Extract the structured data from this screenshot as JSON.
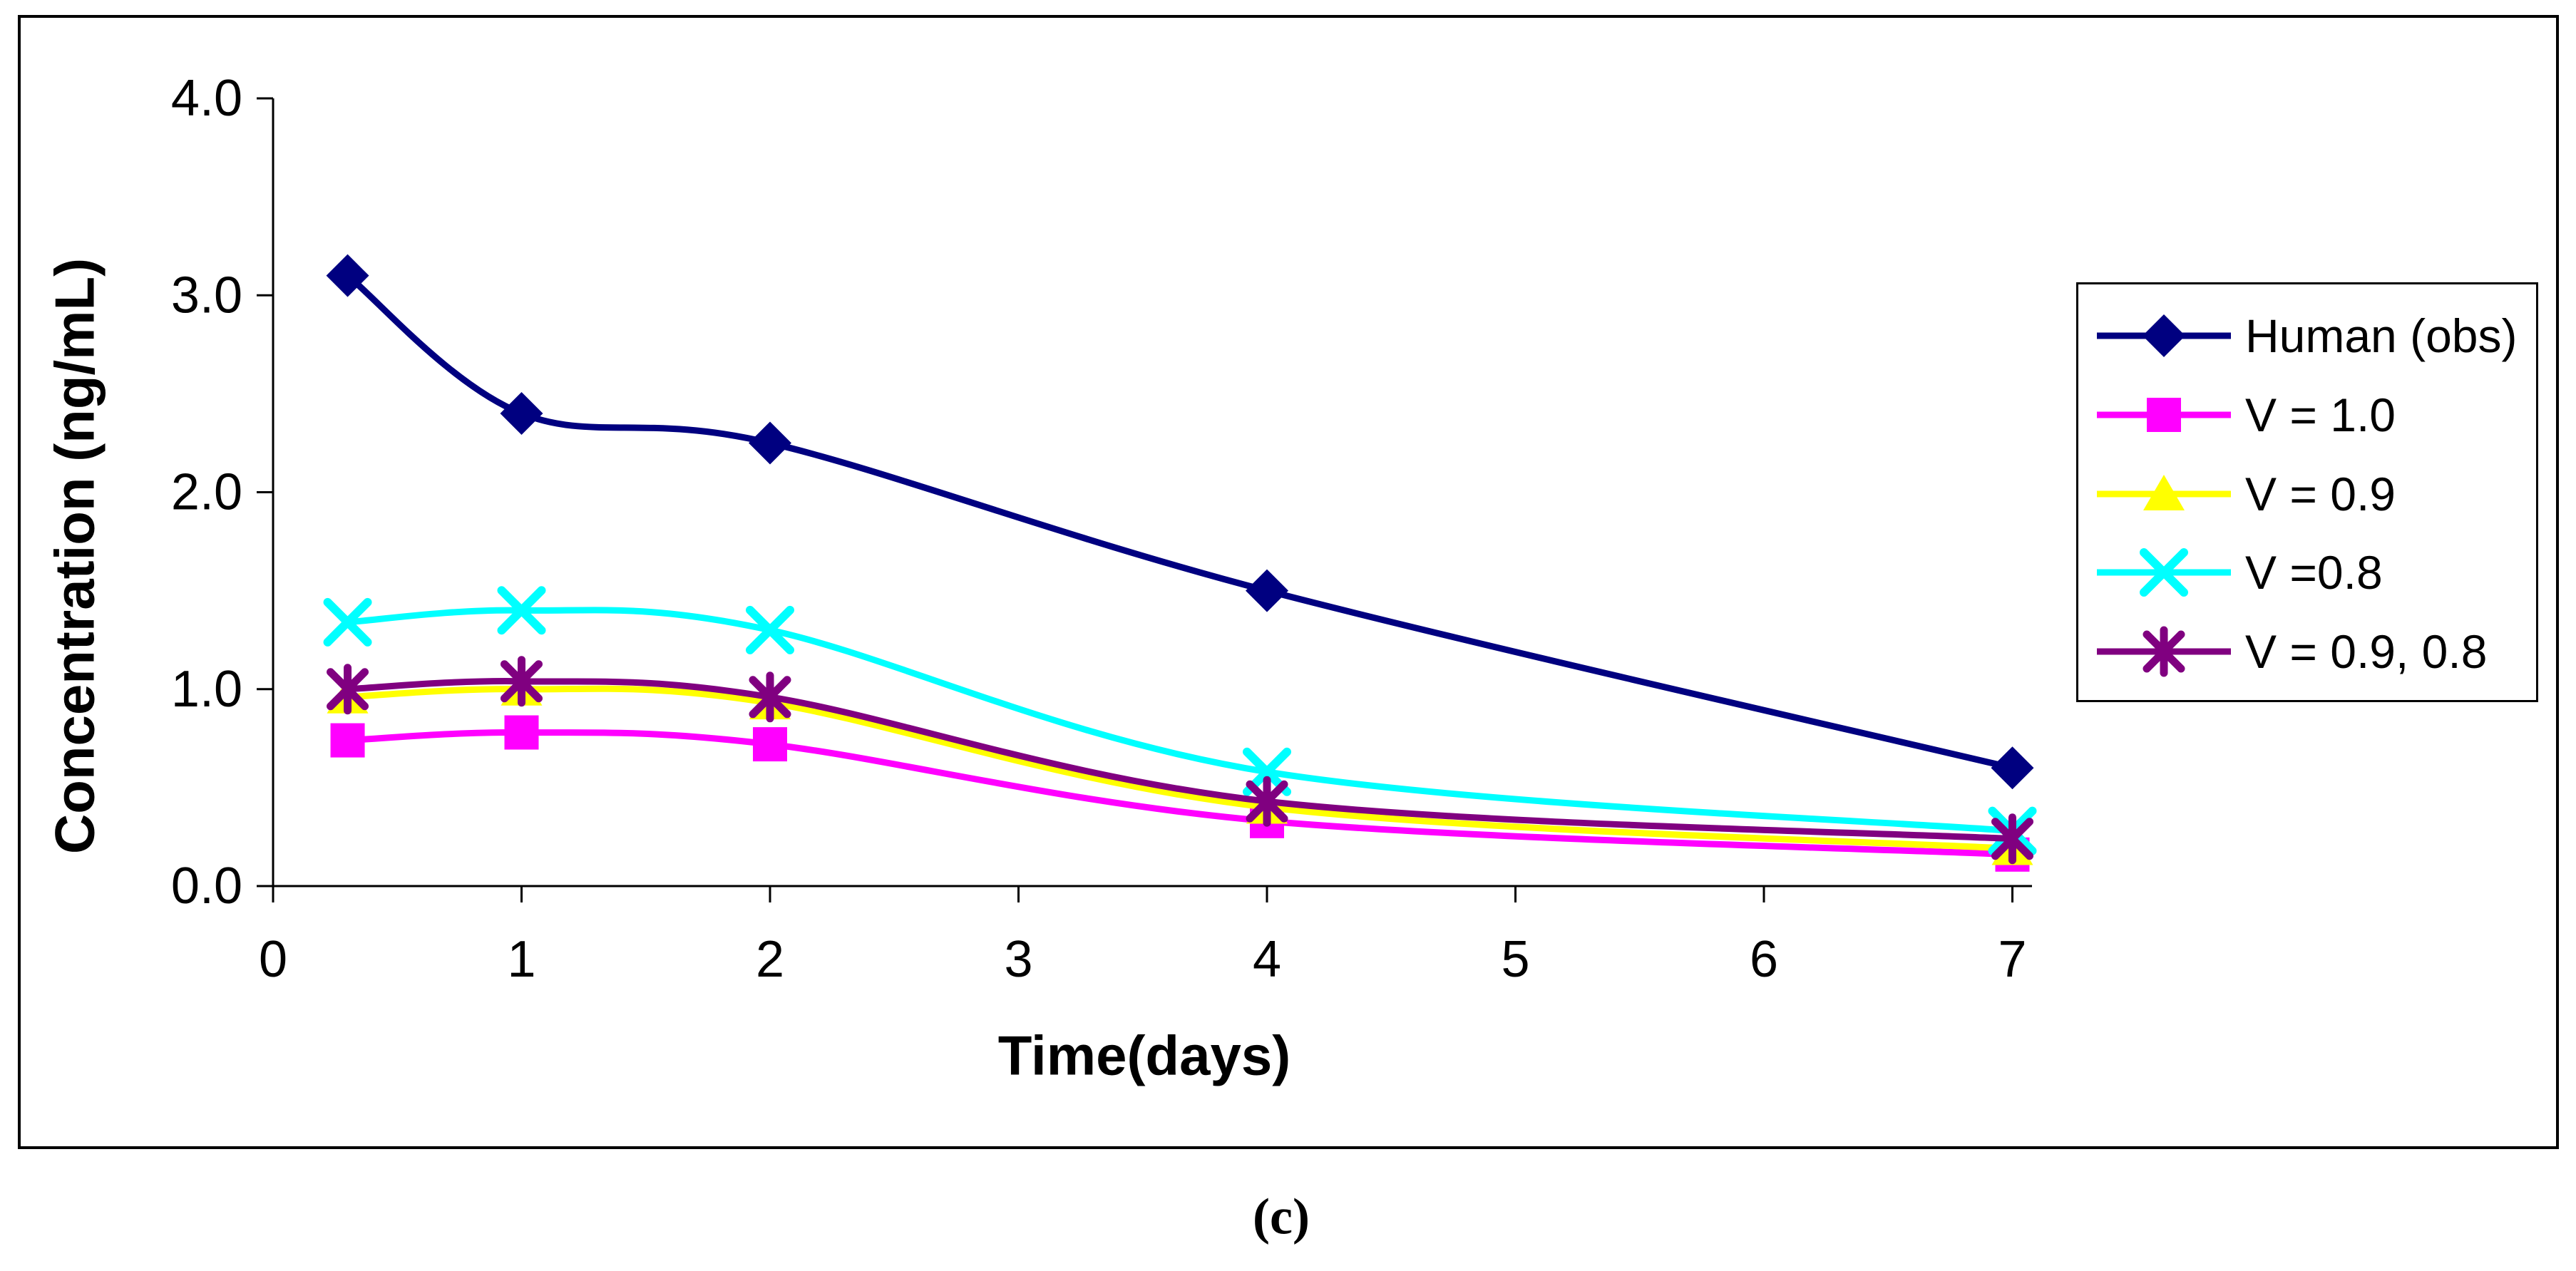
{
  "caption": "(c)",
  "chart_data": {
    "type": "line",
    "title": "",
    "xlabel": "Time(days)",
    "ylabel": "Concentration (ng/mL)",
    "x": [
      0.3,
      1,
      2,
      4,
      7
    ],
    "xlim": [
      0,
      7.05
    ],
    "ylim": [
      0,
      4
    ],
    "xticks": [
      0,
      1,
      2,
      3,
      4,
      5,
      6,
      7
    ],
    "xtick_labels": [
      "0",
      "1",
      "2",
      "3",
      "4",
      "5",
      "6",
      "7"
    ],
    "ytick_values": [
      0,
      1,
      2,
      3,
      4
    ],
    "ytick_labels": [
      "0.0",
      "1.0",
      "2.0",
      "3.0",
      "4.0"
    ],
    "grid": false,
    "legend_position": "right",
    "line_style": "smooth",
    "series": [
      {
        "name": "Human (obs)",
        "color": "#000080",
        "marker": "diamond",
        "values": [
          3.1,
          2.4,
          2.25,
          1.5,
          0.6
        ]
      },
      {
        "name": "V = 1.0",
        "color": "#FF00FF",
        "marker": "square",
        "values": [
          0.74,
          0.78,
          0.72,
          0.33,
          0.16
        ]
      },
      {
        "name": "V = 0.9",
        "color": "#FFFF00",
        "marker": "triangle",
        "values": [
          0.96,
          1.0,
          0.93,
          0.4,
          0.19
        ]
      },
      {
        "name": "V =0.8",
        "color": "#00FFFF",
        "marker": "x",
        "values": [
          1.34,
          1.4,
          1.3,
          0.58,
          0.28
        ]
      },
      {
        "name": "V = 0.9, 0.8",
        "color": "#800080",
        "marker": "asterisk",
        "values": [
          1.0,
          1.04,
          0.96,
          0.43,
          0.24
        ]
      }
    ]
  }
}
